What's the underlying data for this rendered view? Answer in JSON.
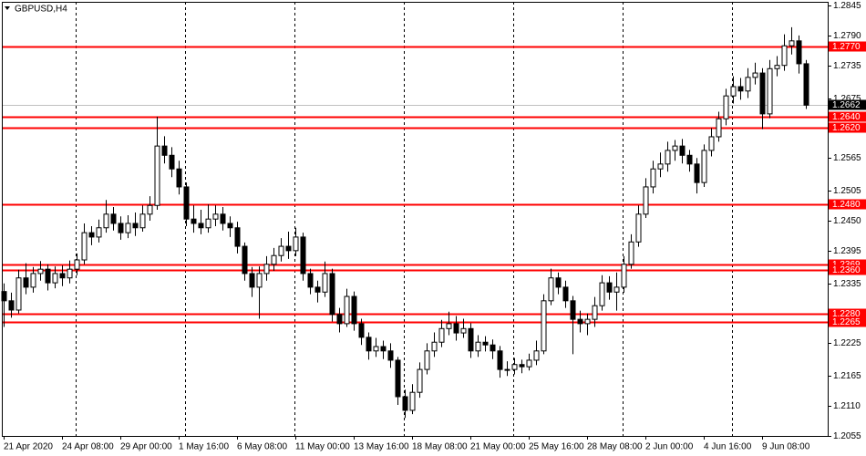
{
  "chart_data": {
    "type": "candlestick",
    "title": "GBPUSD,H4",
    "categories": [
      "21 Apr 2020",
      null,
      null,
      null,
      null,
      null,
      null,
      null,
      "24 Apr 08:00",
      null,
      null,
      null,
      null,
      null,
      null,
      null,
      "29 Apr 00:00",
      null,
      null,
      null,
      null,
      null,
      null,
      null,
      "1 May 16:00",
      null,
      null,
      null,
      null,
      null,
      null,
      null,
      "6 May 08:00",
      null,
      null,
      null,
      null,
      null,
      null,
      null,
      "11 May 00:00",
      null,
      null,
      null,
      null,
      null,
      null,
      null,
      "13 May 16:00",
      null,
      null,
      null,
      null,
      null,
      null,
      null,
      "18 May 08:00",
      null,
      null,
      null,
      null,
      null,
      null,
      null,
      "21 May 00:00",
      null,
      null,
      null,
      null,
      null,
      null,
      null,
      "25 May 16:00",
      null,
      null,
      null,
      null,
      null,
      null,
      null,
      "28 May 08:00",
      null,
      null,
      null,
      null,
      null,
      null,
      null,
      "2 Jun 00:00",
      null,
      null,
      null,
      null,
      null,
      null,
      null,
      "4 Jun 16:00",
      null,
      null,
      null,
      null,
      null,
      null,
      null,
      "9 Jun 08:00",
      null,
      null,
      null,
      null,
      null,
      null
    ],
    "ohlc": [
      [
        1.232,
        1.2335,
        1.2255,
        1.2303
      ],
      [
        1.2303,
        1.2318,
        1.2272,
        1.2286
      ],
      [
        1.2286,
        1.236,
        1.228,
        1.2345
      ],
      [
        1.2345,
        1.2372,
        1.2315,
        1.2328
      ],
      [
        1.2328,
        1.2365,
        1.2318,
        1.2353
      ],
      [
        1.2353,
        1.2376,
        1.234,
        1.2361
      ],
      [
        1.2361,
        1.237,
        1.2322,
        1.2336
      ],
      [
        1.2336,
        1.2366,
        1.2326,
        1.2353
      ],
      [
        1.2353,
        1.2368,
        1.233,
        1.2345
      ],
      [
        1.2345,
        1.2377,
        1.2335,
        1.2361
      ],
      [
        1.2361,
        1.239,
        1.235,
        1.2378
      ],
      [
        1.2378,
        1.2445,
        1.237,
        1.2428
      ],
      [
        1.2428,
        1.244,
        1.2405,
        1.242
      ],
      [
        1.242,
        1.2452,
        1.241,
        1.2437
      ],
      [
        1.2437,
        1.2488,
        1.2428,
        1.2462
      ],
      [
        1.2462,
        1.2475,
        1.2432,
        1.2445
      ],
      [
        1.2445,
        1.2458,
        1.2415,
        1.2428
      ],
      [
        1.2428,
        1.246,
        1.2418,
        1.2445
      ],
      [
        1.2445,
        1.2465,
        1.2422,
        1.2437
      ],
      [
        1.2437,
        1.2478,
        1.243,
        1.2462
      ],
      [
        1.2462,
        1.2495,
        1.245,
        1.2478
      ],
      [
        1.2478,
        1.2641,
        1.247,
        1.2587
      ],
      [
        1.2587,
        1.2605,
        1.2555,
        1.257
      ],
      [
        1.257,
        1.2585,
        1.253,
        1.2545
      ],
      [
        1.2545,
        1.256,
        1.2498,
        1.2512
      ],
      [
        1.2512,
        1.252,
        1.244,
        1.2453
      ],
      [
        1.2453,
        1.2478,
        1.2428,
        1.2445
      ],
      [
        1.2445,
        1.247,
        1.2425,
        1.2437
      ],
      [
        1.2437,
        1.248,
        1.2428,
        1.2453
      ],
      [
        1.2453,
        1.2478,
        1.244,
        1.2462
      ],
      [
        1.2462,
        1.2475,
        1.2432,
        1.2445
      ],
      [
        1.2445,
        1.2458,
        1.242,
        1.2437
      ],
      [
        1.2437,
        1.2448,
        1.239,
        1.2403
      ],
      [
        1.2403,
        1.241,
        1.234,
        1.2353
      ],
      [
        1.2353,
        1.2365,
        1.231,
        1.2328
      ],
      [
        1.2328,
        1.2366,
        1.227,
        1.2353
      ],
      [
        1.2353,
        1.2385,
        1.234,
        1.237
      ],
      [
        1.237,
        1.24,
        1.2358,
        1.2386
      ],
      [
        1.2386,
        1.2418,
        1.2375,
        1.2403
      ],
      [
        1.2403,
        1.243,
        1.238,
        1.2395
      ],
      [
        1.2395,
        1.2437,
        1.2385,
        1.242
      ],
      [
        1.242,
        1.2428,
        1.234,
        1.2353
      ],
      [
        1.2353,
        1.2362,
        1.2315,
        1.2328
      ],
      [
        1.2328,
        1.234,
        1.23,
        1.2319
      ],
      [
        1.2319,
        1.2375,
        1.231,
        1.2353
      ],
      [
        1.2353,
        1.2362,
        1.2265,
        1.2278
      ],
      [
        1.2278,
        1.229,
        1.2245,
        1.2261
      ],
      [
        1.2261,
        1.2325,
        1.2255,
        1.2311
      ],
      [
        1.2311,
        1.232,
        1.2248,
        1.2261
      ],
      [
        1.2261,
        1.227,
        1.2222,
        1.2236
      ],
      [
        1.2236,
        1.2245,
        1.2195,
        1.2211
      ],
      [
        1.2211,
        1.2235,
        1.22,
        1.2219
      ],
      [
        1.2219,
        1.223,
        1.2196,
        1.2211
      ],
      [
        1.2211,
        1.2225,
        1.218,
        1.2194
      ],
      [
        1.2194,
        1.22,
        1.2112,
        1.2127
      ],
      [
        1.2127,
        1.214,
        1.2088,
        1.2102
      ],
      [
        1.2102,
        1.215,
        1.2095,
        1.2135
      ],
      [
        1.2135,
        1.219,
        1.2125,
        1.2177
      ],
      [
        1.2177,
        1.2225,
        1.2168,
        1.2211
      ],
      [
        1.2211,
        1.2245,
        1.22,
        1.2227
      ],
      [
        1.2227,
        1.2268,
        1.2218,
        1.2252
      ],
      [
        1.2252,
        1.2283,
        1.224,
        1.2261
      ],
      [
        1.2261,
        1.2275,
        1.223,
        1.2244
      ],
      [
        1.2244,
        1.227,
        1.2235,
        1.2252
      ],
      [
        1.2252,
        1.2262,
        1.2198,
        1.2211
      ],
      [
        1.2211,
        1.224,
        1.22,
        1.2227
      ],
      [
        1.2227,
        1.2238,
        1.221,
        1.2222
      ],
      [
        1.2222,
        1.2232,
        1.2196,
        1.2211
      ],
      [
        1.2211,
        1.222,
        1.2162,
        1.2177
      ],
      [
        1.2177,
        1.2192,
        1.2165,
        1.2177
      ],
      [
        1.2177,
        1.2198,
        1.2168,
        1.2186
      ],
      [
        1.2186,
        1.2195,
        1.217,
        1.2182
      ],
      [
        1.2182,
        1.2206,
        1.2175,
        1.2194
      ],
      [
        1.2194,
        1.223,
        1.2185,
        1.2211
      ],
      [
        1.2211,
        1.2315,
        1.2205,
        1.2303
      ],
      [
        1.2303,
        1.2362,
        1.2295,
        1.2345
      ],
      [
        1.2345,
        1.2355,
        1.2315,
        1.2328
      ],
      [
        1.2328,
        1.234,
        1.229,
        1.2303
      ],
      [
        1.2303,
        1.2312,
        1.2205,
        1.2269
      ],
      [
        1.2269,
        1.2285,
        1.2245,
        1.2261
      ],
      [
        1.2261,
        1.228,
        1.224,
        1.2269
      ],
      [
        1.2269,
        1.231,
        1.2255,
        1.2294
      ],
      [
        1.2294,
        1.235,
        1.2285,
        1.2336
      ],
      [
        1.2336,
        1.2348,
        1.2305,
        1.2319
      ],
      [
        1.2319,
        1.2355,
        1.2285,
        1.2328
      ],
      [
        1.2328,
        1.2385,
        1.2318,
        1.237
      ],
      [
        1.237,
        1.2425,
        1.2362,
        1.2411
      ],
      [
        1.2411,
        1.2478,
        1.2402,
        1.2462
      ],
      [
        1.2462,
        1.2528,
        1.2455,
        1.2512
      ],
      [
        1.2512,
        1.256,
        1.25,
        1.2545
      ],
      [
        1.2545,
        1.2575,
        1.253,
        1.2554
      ],
      [
        1.2554,
        1.2595,
        1.254,
        1.2579
      ],
      [
        1.2579,
        1.2598,
        1.256,
        1.2587
      ],
      [
        1.2587,
        1.26,
        1.2555,
        1.257
      ],
      [
        1.257,
        1.258,
        1.254,
        1.2554
      ],
      [
        1.2554,
        1.2565,
        1.25,
        1.252
      ],
      [
        1.252,
        1.259,
        1.2512,
        1.2579
      ],
      [
        1.2579,
        1.262,
        1.2568,
        1.2604
      ],
      [
        1.2604,
        1.265,
        1.2595,
        1.2637
      ],
      [
        1.2637,
        1.2692,
        1.2625,
        1.2679
      ],
      [
        1.2679,
        1.2715,
        1.2665,
        1.2696
      ],
      [
        1.2696,
        1.2712,
        1.2672,
        1.2688
      ],
      [
        1.2688,
        1.273,
        1.2675,
        1.2713
      ],
      [
        1.2713,
        1.274,
        1.27,
        1.2721
      ],
      [
        1.2721,
        1.273,
        1.2618,
        1.2646
      ],
      [
        1.2646,
        1.2745,
        1.2638,
        1.2729
      ],
      [
        1.2729,
        1.2752,
        1.2715,
        1.2735
      ],
      [
        1.2735,
        1.2792,
        1.2725,
        1.2771
      ],
      [
        1.2771,
        1.2805,
        1.2755,
        1.278
      ],
      [
        1.278,
        1.279,
        1.272,
        1.2738
      ],
      [
        1.2738,
        1.2745,
        1.2655,
        1.2662
      ]
    ],
    "up_color": "#ffffff",
    "down_color": "#000000",
    "ylim": [
      1.2055,
      1.2855
    ],
    "yticks": [
      1.2845,
      {
        "value": 1.279,
        "label": "1.2790"
      },
      1.2735,
      1.2675,
      {
        "value": 1.262,
        "label": "1.2620"
      },
      1.2565,
      1.2505,
      {
        "value": 1.245,
        "label": "1.2450"
      },
      1.2395,
      1.2335,
      {
        "value": 1.228,
        "label": "1.2280"
      },
      1.2225,
      1.2165,
      {
        "value": 1.211,
        "label": "1.2110"
      },
      1.2055
    ],
    "levels": [
      {
        "value": 1.277,
        "label": "1.2770"
      },
      {
        "value": 1.264,
        "label": "1.2640"
      },
      {
        "value": 1.262,
        "label": "1.2620"
      },
      {
        "value": 1.248,
        "label": "1.2480"
      },
      1.2369,
      {
        "value": 1.236,
        "label": "1.2360"
      },
      {
        "value": 1.228,
        "label": "1.2280"
      },
      1.2265
    ],
    "level_color": "#ff0000",
    "current_price": 1.2662,
    "grid": true
  }
}
